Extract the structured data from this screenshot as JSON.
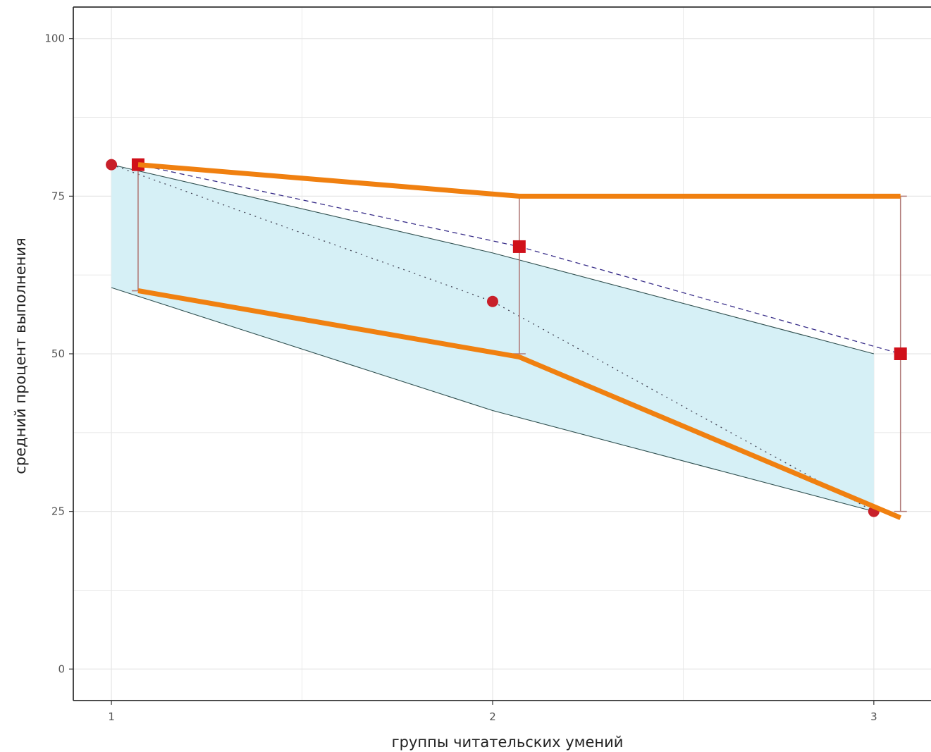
{
  "chart_data": {
    "type": "line",
    "xlabel": "группы читательских умений",
    "ylabel": "средний процент выполнения",
    "x_ticks": [
      "1",
      "2",
      "3"
    ],
    "y_ticks": [
      "0",
      "25",
      "50",
      "75",
      "100"
    ],
    "xlim": [
      0.9,
      3.15
    ],
    "ylim": [
      -5,
      105
    ],
    "grid": true,
    "band": {
      "x": [
        1,
        2,
        3
      ],
      "upper": [
        80,
        66,
        50
      ],
      "lower": [
        60.5,
        41,
        25
      ]
    },
    "series": [
      {
        "marker": "circle",
        "color": "#c8202a",
        "style": "dotted",
        "x": [
          1,
          2,
          3
        ],
        "y": [
          80,
          58.3,
          25
        ]
      },
      {
        "marker": "square",
        "color": "#d0101a",
        "style": "dashed",
        "x": [
          1.07,
          2.07,
          3.07
        ],
        "y": [
          80,
          67,
          50
        ]
      }
    ],
    "intervals": [
      {
        "x": 1.07,
        "low": 60,
        "high": 80
      },
      {
        "x": 2.07,
        "low": 50,
        "high": 75
      },
      {
        "x": 3.07,
        "low": 25,
        "high": 75
      }
    ],
    "highlight_lines": {
      "color": "#f08010",
      "upper": {
        "x": [
          1.07,
          2.07,
          3.07
        ],
        "y": [
          80,
          75,
          75
        ]
      },
      "lower": {
        "x": [
          1.07,
          2.07,
          3.07
        ],
        "y": [
          60,
          49.5,
          24
        ]
      }
    },
    "colors": {
      "band_fill": "#d6f0f6",
      "band_edge": "#2f4f4f",
      "grid": "#e6e6e6",
      "interval": "#b07a78"
    }
  }
}
